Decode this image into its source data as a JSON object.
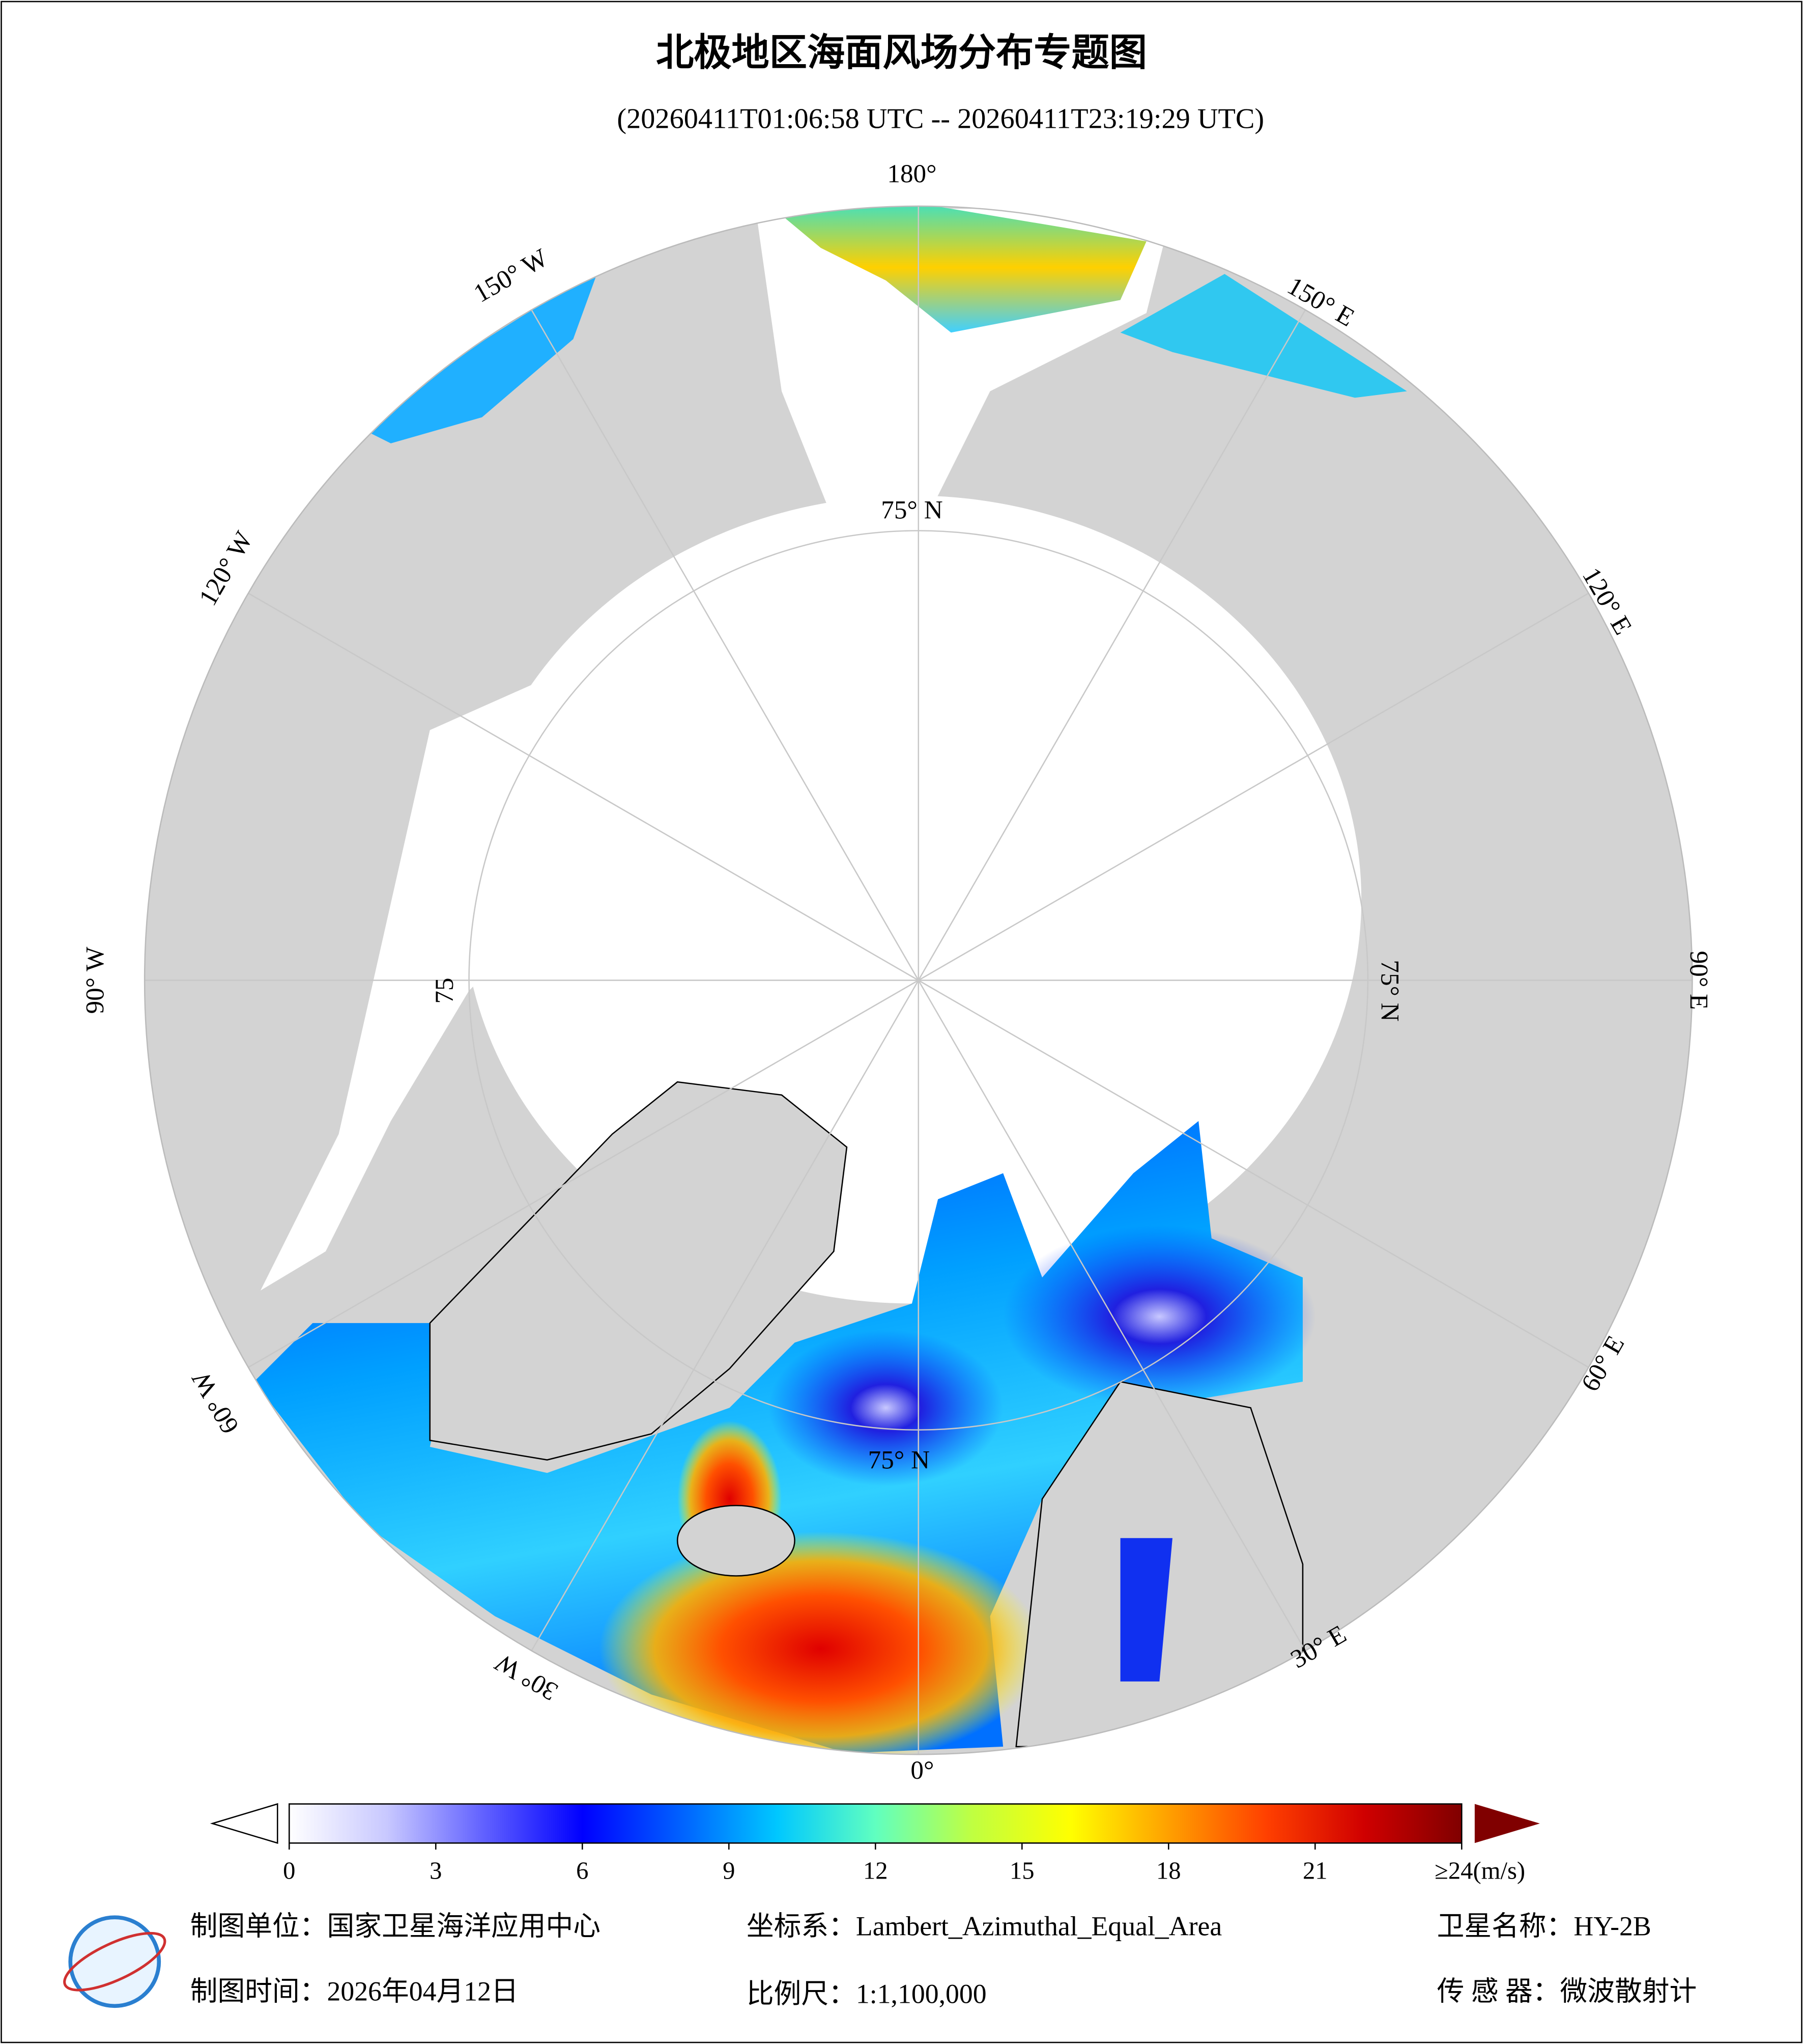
{
  "header": {
    "title": "北极地区海面风场分布专题图",
    "time_range": "(20260411T01:06:58 UTC -- 20260411T23:19:29 UTC)"
  },
  "map": {
    "graticule_labels": [
      "180°",
      "150° W",
      "150° E",
      "120° W",
      "120° E",
      "90° W",
      "90° E",
      "60° W",
      "60° E",
      "30° W",
      "30° E",
      "0°",
      "75° N",
      "75° N",
      "75",
      "75° N"
    ]
  },
  "colorbar": {
    "lim": [
      0,
      24
    ],
    "ticks": [
      0,
      3,
      6,
      9,
      12,
      15,
      18,
      21,
      {
        "value": 24,
        "label": "≥24(m/s)"
      }
    ],
    "colors": [
      "#ffffff",
      "#c8c8ff",
      "#6060ff",
      "#0000ff",
      "#0060ff",
      "#00c8ff",
      "#60ffc0",
      "#c0ff40",
      "#ffff00",
      "#ffa000",
      "#ff4000",
      "#d00000",
      "#800000"
    ]
  },
  "footer": {
    "unit": "制图单位：国家卫星海洋应用中心",
    "crs": "坐标系：Lambert_Azimuthal_Equal_Area",
    "satellite": "卫星名称：HY-2B",
    "date": "制图时间：2026年04月12日",
    "scale": "比例尺：1:1,100,000",
    "sensor": "传 感 器：微波散射计"
  }
}
